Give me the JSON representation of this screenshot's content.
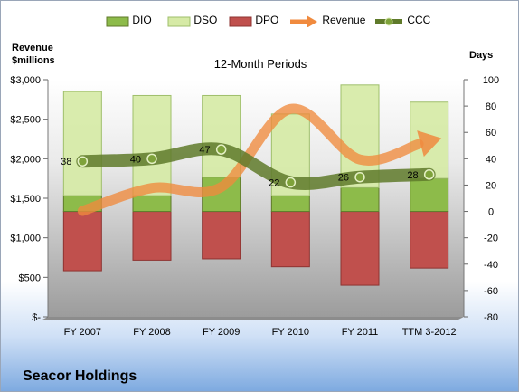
{
  "chart_data": {
    "type": "bar",
    "subtitle": "12-Month Periods",
    "company": "Seacor Holdings",
    "ylabel_left": [
      "Revenue",
      "$millions"
    ],
    "ylabel_right": "Days",
    "categories": [
      "FY 2007",
      "FY 2008",
      "FY 2009",
      "FY 2010",
      "FY 2011",
      "TTM 3-2012"
    ],
    "left_axis": {
      "min": 0,
      "max": 3000,
      "step": 500,
      "tick_labels": [
        "$-",
        "$500",
        "$1,000",
        "$1,500",
        "$2,000",
        "$2,500",
        "$3,000"
      ]
    },
    "right_axis": {
      "min": -80,
      "max": 100,
      "step": 20,
      "tick_labels": [
        "-80",
        "-60",
        "-40",
        "-20",
        "0",
        "20",
        "40",
        "60",
        "80",
        "100"
      ]
    },
    "series": [
      {
        "name": "DIO",
        "kind": "stacked-bar",
        "color": "#8dbb4a",
        "values": [
          12,
          12,
          26,
          12,
          18,
          25
        ]
      },
      {
        "name": "DSO",
        "kind": "stacked-bar",
        "color": "#d6eaa6",
        "values": [
          79,
          76,
          62,
          62,
          78,
          58
        ]
      },
      {
        "name": "DPO",
        "kind": "negative-bar",
        "color": "#c0504d",
        "values": [
          -45,
          -37,
          -36,
          -42,
          -56,
          -43
        ]
      },
      {
        "name": "Revenue",
        "kind": "line",
        "axis": "left",
        "color": "#f08a3e",
        "values": [
          1340,
          1630,
          1640,
          2630,
          1990,
          2220
        ]
      },
      {
        "name": "CCC",
        "kind": "line",
        "axis": "right",
        "color": "#5f7a2a",
        "values": [
          38,
          40,
          47,
          22,
          26,
          28
        ],
        "labels": [
          "38",
          "40",
          "47",
          "22",
          "26",
          "28"
        ]
      }
    ],
    "grid": false,
    "legend_position": "top"
  }
}
